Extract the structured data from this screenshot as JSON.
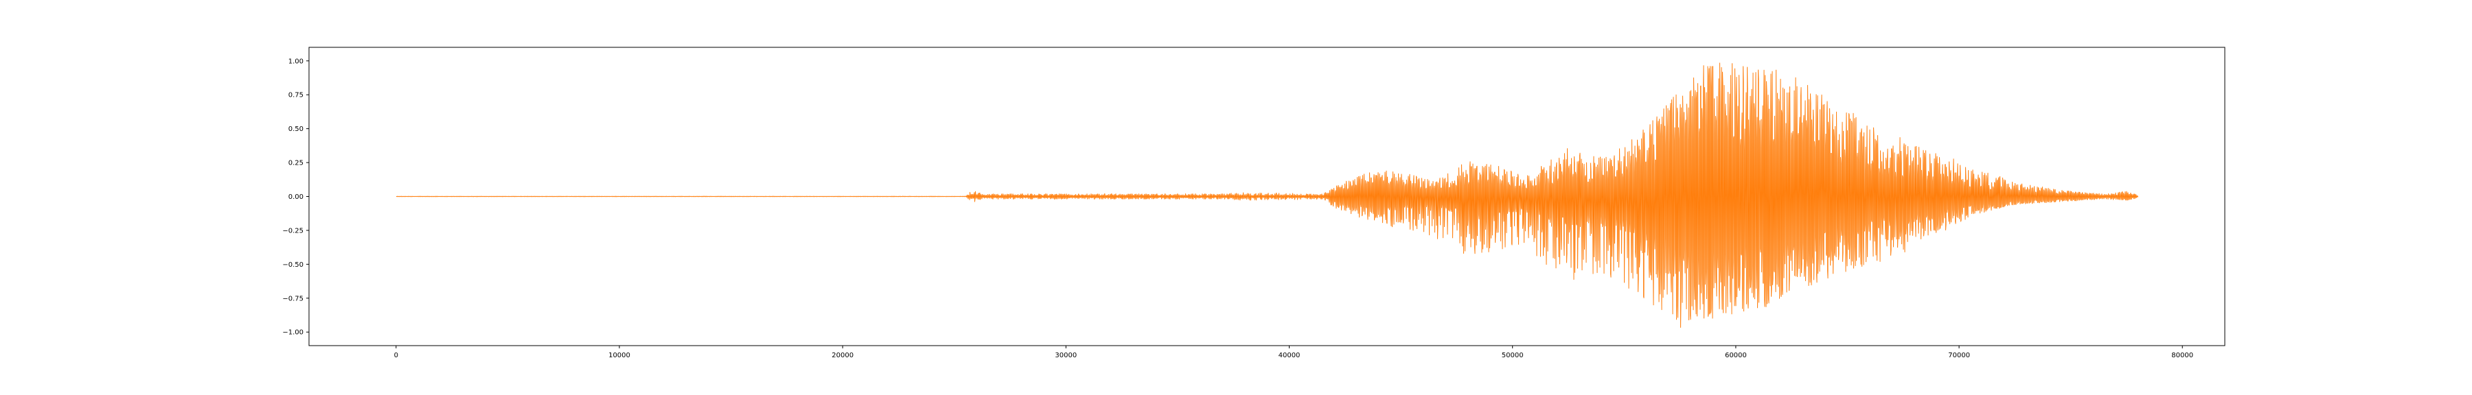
{
  "chart_data": {
    "type": "line",
    "title": "",
    "xlabel": "",
    "ylabel": "",
    "xlim": [
      -3900,
      81900
    ],
    "ylim": [
      -1.1,
      1.1
    ],
    "grid": false,
    "legend": "none",
    "x_ticks": [
      0,
      10000,
      20000,
      30000,
      40000,
      50000,
      60000,
      70000,
      80000
    ],
    "x_tick_labels": [
      "0",
      "10000",
      "20000",
      "30000",
      "40000",
      "50000",
      "60000",
      "70000",
      "80000"
    ],
    "y_ticks": [
      -1.0,
      -0.75,
      -0.5,
      -0.25,
      0.0,
      0.25,
      0.5,
      0.75,
      1.0
    ],
    "y_tick_labels": [
      "−1.00",
      "−0.75",
      "−0.50",
      "−0.25",
      "0.00",
      "0.25",
      "0.50",
      "0.75",
      "1.00"
    ],
    "series": [
      {
        "color": "#ff7f0e",
        "sample_count": 78000,
        "envelope": {
          "x": [
            0,
            25500,
            25800,
            26200,
            37000,
            38000,
            41500,
            42000,
            43000,
            44000,
            45000,
            46500,
            48000,
            49500,
            50500,
            51500,
            52500,
            53500,
            54500,
            55500,
            56500,
            57500,
            58500,
            59500,
            60500,
            61500,
            62500,
            63500,
            64500,
            65500,
            66500,
            67500,
            68500,
            69500,
            70500,
            71500,
            72500,
            73500,
            74500,
            75500,
            76500,
            77500,
            78000
          ],
          "upper": [
            0.002,
            0.002,
            0.06,
            0.02,
            0.02,
            0.03,
            0.02,
            0.08,
            0.15,
            0.2,
            0.18,
            0.12,
            0.27,
            0.22,
            0.15,
            0.25,
            0.38,
            0.3,
            0.35,
            0.45,
            0.6,
            0.8,
            0.97,
            1.0,
            0.97,
            0.95,
            0.9,
            0.82,
            0.65,
            0.62,
            0.5,
            0.45,
            0.35,
            0.3,
            0.22,
            0.18,
            0.1,
            0.08,
            0.05,
            0.03,
            0.02,
            0.04,
            0.01
          ],
          "inner_upper": [
            0.001,
            0.001,
            0.02,
            0.01,
            0.01,
            0.01,
            0.01,
            0.05,
            0.09,
            0.12,
            0.1,
            0.07,
            0.14,
            0.12,
            0.08,
            0.12,
            0.2,
            0.15,
            0.18,
            0.25,
            0.4,
            0.62,
            0.7,
            0.62,
            0.55,
            0.6,
            0.62,
            0.55,
            0.4,
            0.32,
            0.25,
            0.22,
            0.18,
            0.15,
            0.1,
            0.08,
            0.05,
            0.04,
            0.03,
            0.02,
            0.01,
            0.02,
            0.005
          ],
          "inner_lower": [
            -0.001,
            -0.001,
            -0.02,
            -0.01,
            -0.01,
            -0.01,
            -0.01,
            -0.05,
            -0.09,
            -0.12,
            -0.1,
            -0.07,
            -0.18,
            -0.14,
            -0.1,
            -0.16,
            -0.24,
            -0.2,
            -0.24,
            -0.3,
            -0.45,
            -0.62,
            -0.68,
            -0.62,
            -0.6,
            -0.62,
            -0.58,
            -0.48,
            -0.38,
            -0.32,
            -0.25,
            -0.22,
            -0.18,
            -0.15,
            -0.1,
            -0.08,
            -0.05,
            -0.04,
            -0.03,
            -0.02,
            -0.01,
            -0.02,
            -0.005
          ],
          "lower": [
            -0.002,
            -0.002,
            -0.05,
            -0.02,
            -0.02,
            -0.03,
            -0.02,
            -0.08,
            -0.15,
            -0.2,
            -0.25,
            -0.3,
            -0.45,
            -0.4,
            -0.35,
            -0.5,
            -0.62,
            -0.6,
            -0.6,
            -0.72,
            -0.82,
            -0.97,
            -0.92,
            -0.88,
            -0.85,
            -0.82,
            -0.72,
            -0.65,
            -0.58,
            -0.55,
            -0.48,
            -0.42,
            -0.3,
            -0.25,
            -0.15,
            -0.1,
            -0.06,
            -0.05,
            -0.04,
            -0.03,
            -0.02,
            -0.03,
            -0.01
          ]
        }
      }
    ]
  }
}
